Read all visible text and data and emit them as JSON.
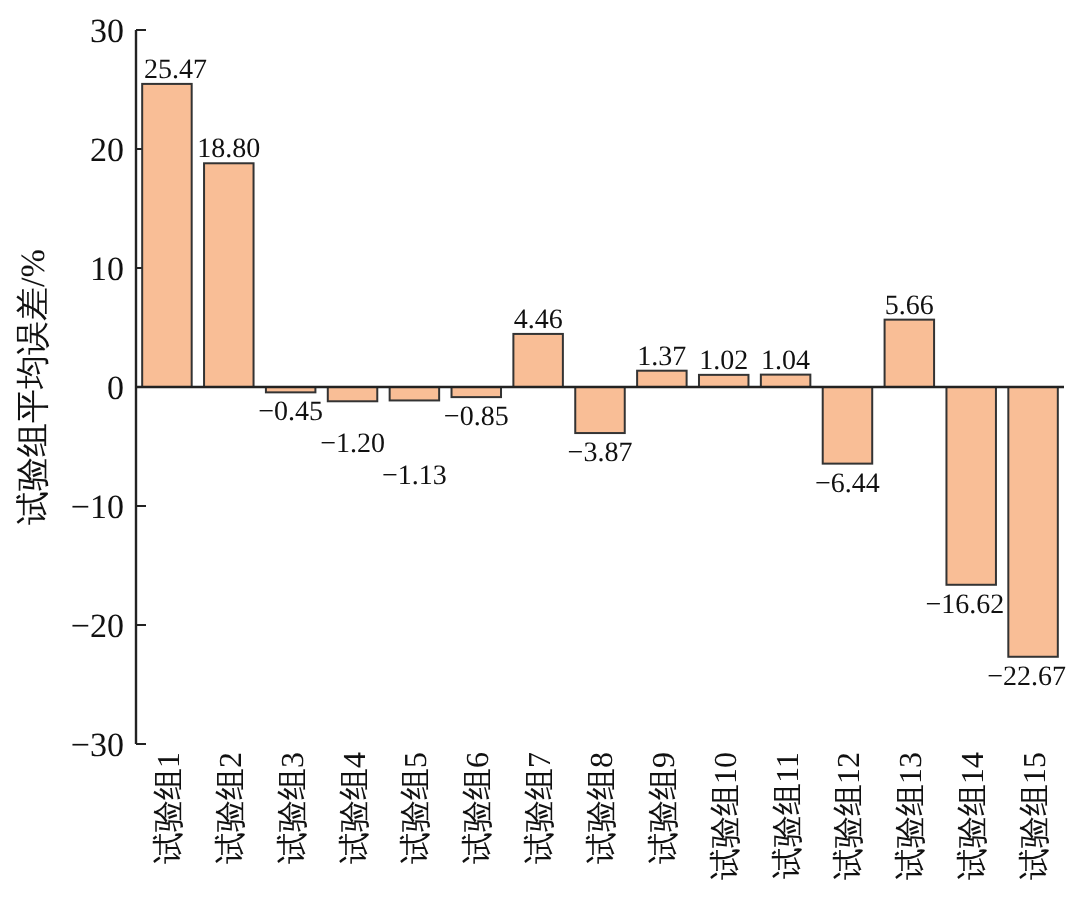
{
  "chart_data": {
    "type": "bar",
    "ylabel": "试验组平均误差/%",
    "categories": [
      "试验组1",
      "试验组2",
      "试验组3",
      "试验组4",
      "试验组5",
      "试验组6",
      "试验组7",
      "试验组8",
      "试验组9",
      "试验组10",
      "试验组11",
      "试验组12",
      "试验组13",
      "试验组14",
      "试验组15"
    ],
    "values": [
      25.47,
      18.8,
      -0.45,
      -1.2,
      -1.13,
      -0.85,
      4.46,
      -3.87,
      1.37,
      1.02,
      1.04,
      -6.44,
      5.66,
      -16.62,
      -22.67
    ],
    "value_labels": [
      "25.47",
      "18.80",
      "−0.45",
      "−1.20",
      "−1.13",
      "−0.85",
      "4.46",
      "−3.87",
      "1.37",
      "1.02",
      "1.04",
      "−6.44",
      "5.66",
      "−16.62",
      "−22.67"
    ],
    "color": "#f9be96",
    "ylim": [
      -30,
      30
    ],
    "yticks": [
      -30,
      -20,
      -10,
      0,
      10,
      20,
      30
    ]
  }
}
